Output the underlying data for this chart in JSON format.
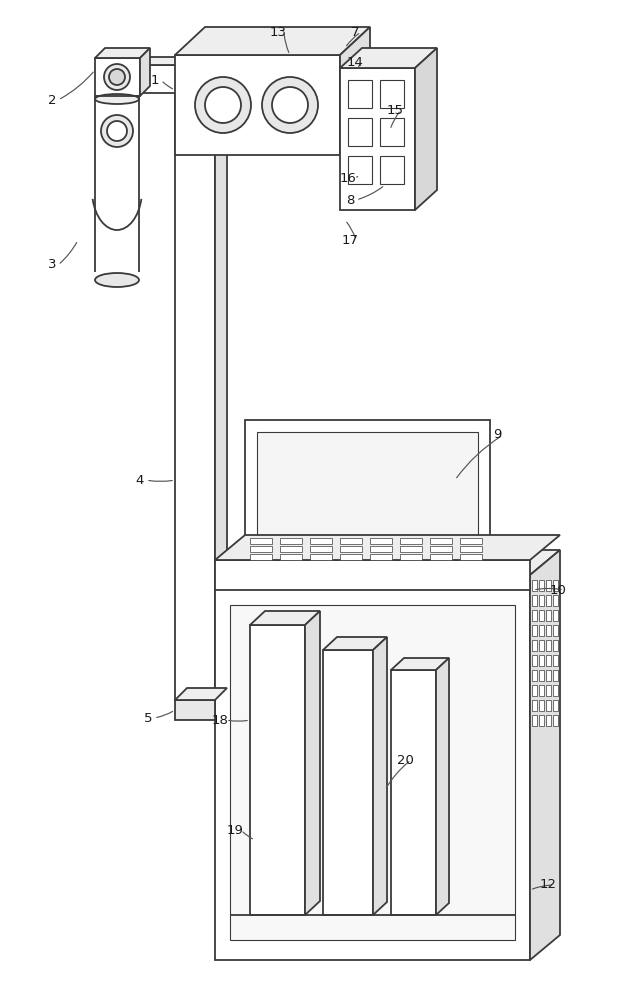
{
  "bg_color": "#ffffff",
  "lc": "#3a3a3a",
  "lw": 1.3,
  "lw_thin": 0.8
}
